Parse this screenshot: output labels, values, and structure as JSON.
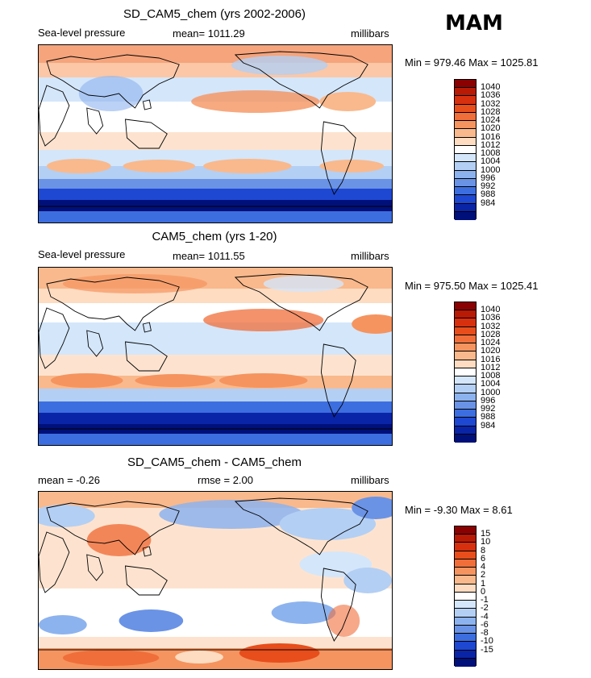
{
  "season": "MAM",
  "panels": [
    {
      "id": "top",
      "title": "SD_CAM5_chem (yrs 2002-2006)",
      "left_label": "Sea-level pressure",
      "center_label": "mean= 1011.29",
      "right_label": "millibars",
      "min_max": "Min = 979.46 Max = 1025.81"
    },
    {
      "id": "middle",
      "title": "CAM5_chem (yrs 1-20)",
      "left_label": "Sea-level pressure",
      "center_label": "mean= 1011.55",
      "right_label": "millibars",
      "min_max": "Min = 975.50 Max = 1025.41"
    },
    {
      "id": "bottom",
      "title": "SD_CAM5_chem - CAM5_chem",
      "left_label": "mean =  -0.26",
      "center_label": "rmse =   2.00",
      "right_label": "millibars",
      "min_max": "Min =  -9.30 Max =   8.61"
    }
  ],
  "colorbars": {
    "pressure": {
      "labels": [
        "1040",
        "1036",
        "1032",
        "1028",
        "1024",
        "1020",
        "1016",
        "1012",
        "1008",
        "1004",
        "1000",
        "996",
        "992",
        "988",
        "984"
      ],
      "colors": [
        "#8b0000",
        "#b81a05",
        "#d7300f",
        "#e74e1c",
        "#f06e3a",
        "#f5945f",
        "#f9b98c",
        "#fddcc2",
        "#ffffff",
        "#d4e6fa",
        "#b3cff4",
        "#8db3ee",
        "#6a93e6",
        "#3d6ee0",
        "#1e48d2",
        "#0a24a8",
        "#00107a"
      ]
    },
    "difference": {
      "labels": [
        "15",
        "10",
        "8",
        "6",
        "4",
        "2",
        "1",
        "0",
        "-1",
        "-2",
        "-4",
        "-6",
        "-8",
        "-10",
        "-15"
      ],
      "colors": [
        "#8b0000",
        "#b81a05",
        "#d7300f",
        "#e74e1c",
        "#f06e3a",
        "#f5945f",
        "#f9b98c",
        "#fddcc2",
        "#ffffff",
        "#d4e6fa",
        "#b3cff4",
        "#8db3ee",
        "#6a93e6",
        "#3d6ee0",
        "#1e48d2",
        "#0a24a8",
        "#00107a"
      ]
    }
  },
  "chart_data": [
    {
      "type": "heatmap",
      "title": "SD_CAM5_chem (yrs 2002-2006)",
      "variable": "Sea-level pressure",
      "units": "millibars",
      "season": "MAM",
      "mean": 1011.29,
      "min": 979.46,
      "max": 1025.81,
      "contour_levels": [
        984,
        988,
        992,
        996,
        1000,
        1004,
        1008,
        1012,
        1016,
        1020,
        1024,
        1028,
        1032,
        1036,
        1040
      ]
    },
    {
      "type": "heatmap",
      "title": "CAM5_chem (yrs 1-20)",
      "variable": "Sea-level pressure",
      "units": "millibars",
      "season": "MAM",
      "mean": 1011.55,
      "min": 975.5,
      "max": 1025.41,
      "contour_levels": [
        984,
        988,
        992,
        996,
        1000,
        1004,
        1008,
        1012,
        1016,
        1020,
        1024,
        1028,
        1032,
        1036,
        1040
      ]
    },
    {
      "type": "heatmap",
      "title": "SD_CAM5_chem - CAM5_chem",
      "units": "millibars",
      "season": "MAM",
      "mean": -0.26,
      "rmse": 2.0,
      "min": -9.3,
      "max": 8.61,
      "contour_levels": [
        -15,
        -10,
        -8,
        -6,
        -4,
        -2,
        -1,
        0,
        1,
        2,
        4,
        6,
        8,
        10,
        15
      ]
    }
  ]
}
